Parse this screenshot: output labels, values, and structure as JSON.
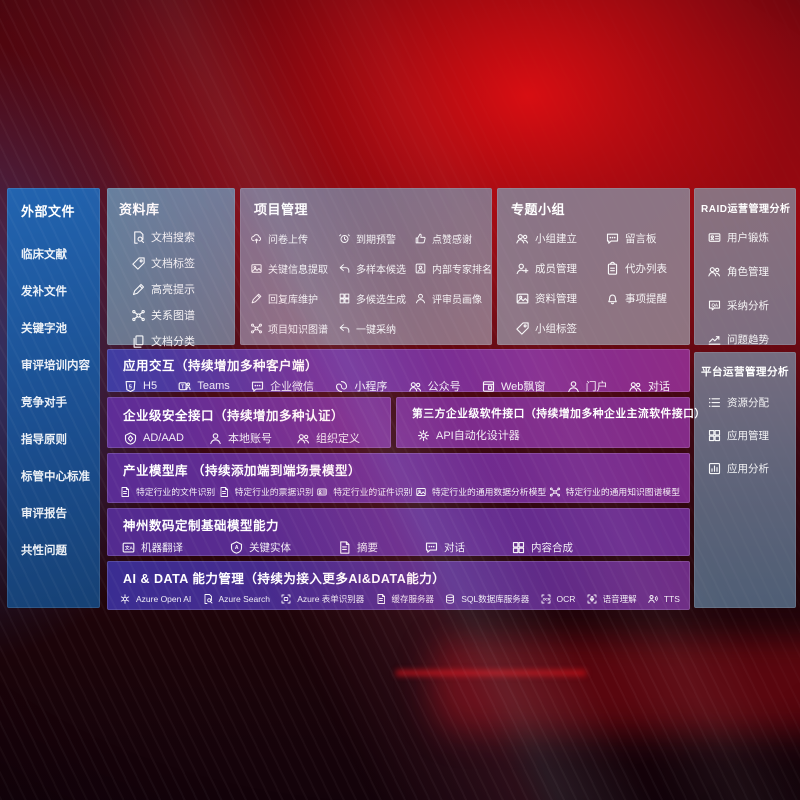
{
  "colors": {
    "screen_red": "#c30c12",
    "sidebar_blue": "#1d5aa0",
    "panel_gray": "#7a7288",
    "module_purple": "#6e2c8e",
    "module_indigo": "#3f3da2"
  },
  "sidebar": {
    "title": "外部文件",
    "items": [
      {
        "label": "临床文献"
      },
      {
        "label": "发补文件"
      },
      {
        "label": "关键字池"
      },
      {
        "label": "审评培训内容"
      },
      {
        "label": "竞争对手"
      },
      {
        "label": "指导原则"
      },
      {
        "label": "标管中心标准"
      },
      {
        "label": "审评报告"
      },
      {
        "label": "共性问题"
      }
    ]
  },
  "library": {
    "title": "资料库",
    "items": [
      {
        "label": "文档搜索",
        "icon": "document-search",
        "glyph": "search-doc"
      },
      {
        "label": "文档标签",
        "icon": "document-tag",
        "glyph": "tag"
      },
      {
        "label": "高亮提示",
        "icon": "highlight-pen",
        "glyph": "pencil"
      },
      {
        "label": "关系图谱",
        "icon": "relation-graph",
        "glyph": "graph"
      },
      {
        "label": "文档分类",
        "icon": "document-classify",
        "glyph": "copy"
      }
    ]
  },
  "project": {
    "title": "项目管理",
    "items": [
      {
        "label": "问卷上传",
        "icon": "cloud-upload",
        "glyph": "cloud"
      },
      {
        "label": "到期预警",
        "icon": "alarm-warning",
        "glyph": "alarm"
      },
      {
        "label": "点赞感谢",
        "icon": "thumbs-up",
        "glyph": "thumb"
      },
      {
        "label": "关键信息提取",
        "icon": "info-extract",
        "glyph": "image"
      },
      {
        "label": "多样本候选",
        "icon": "multi-sample",
        "glyph": "reply"
      },
      {
        "label": "内部专家排名",
        "icon": "expert-rank",
        "glyph": "person-frame"
      },
      {
        "label": "回复库维护",
        "icon": "reply-edit",
        "glyph": "pencil"
      },
      {
        "label": "多候选生成",
        "icon": "multi-generate",
        "glyph": "grid"
      },
      {
        "label": "评审员画像",
        "icon": "reviewer-profile",
        "glyph": "person"
      },
      {
        "label": "项目知识图谱",
        "icon": "knowledge-graph",
        "glyph": "graph"
      },
      {
        "label": "一键采纳",
        "icon": "one-click-adopt",
        "glyph": "reply"
      }
    ]
  },
  "groups": {
    "title": "专题小组",
    "items": [
      {
        "label": "小组建立",
        "icon": "group-create",
        "glyph": "people"
      },
      {
        "label": "留言板",
        "icon": "message-board",
        "glyph": "chat"
      },
      {
        "label": "成员管理",
        "icon": "member-manage",
        "glyph": "person-plus"
      },
      {
        "label": "代办列表",
        "icon": "todo-list",
        "glyph": "clipboard"
      },
      {
        "label": "资料管理",
        "icon": "material-manage",
        "glyph": "image"
      },
      {
        "label": "事项提醒",
        "icon": "reminder-bell",
        "glyph": "bell"
      },
      {
        "label": "小组标签",
        "icon": "group-tag",
        "glyph": "tag"
      }
    ]
  },
  "raid": {
    "title": "RAID运营管理分析",
    "items": [
      {
        "label": "用户锻炼",
        "icon": "user-badge",
        "glyph": "card"
      },
      {
        "label": "角色管理",
        "icon": "role-manage",
        "glyph": "people"
      },
      {
        "label": "采纳分析",
        "icon": "adopt-analysis",
        "glyph": "qa"
      },
      {
        "label": "问题趋势",
        "icon": "issue-trend",
        "glyph": "trend"
      }
    ]
  },
  "platform": {
    "title": "平台运营管理分析",
    "items": [
      {
        "label": "资源分配",
        "icon": "resource-allocate",
        "glyph": "list"
      },
      {
        "label": "应用管理",
        "icon": "app-manage",
        "glyph": "grid"
      },
      {
        "label": "应用分析",
        "icon": "app-analysis",
        "glyph": "chart-box"
      }
    ]
  },
  "interaction": {
    "title": "应用交互（持续增加多种客户端）",
    "items": [
      {
        "label": "H5",
        "icon": "h5-logo",
        "glyph": "h5"
      },
      {
        "label": "Teams",
        "icon": "teams-logo",
        "glyph": "teams"
      },
      {
        "label": "企业微信",
        "icon": "wecom-chat",
        "glyph": "chat"
      },
      {
        "label": "小程序",
        "icon": "miniprogram",
        "glyph": "loop"
      },
      {
        "label": "公众号",
        "icon": "official-account",
        "glyph": "people"
      },
      {
        "label": "Web飘窗",
        "icon": "web-popup",
        "glyph": "window"
      },
      {
        "label": "门户",
        "icon": "portal-user",
        "glyph": "person"
      },
      {
        "label": "对话",
        "icon": "dialog-users",
        "glyph": "people"
      }
    ]
  },
  "security": {
    "title": "企业级安全接口（持续增加多种认证）",
    "items": [
      {
        "label": "AD/AAD",
        "icon": "ad-shield",
        "glyph": "shield"
      },
      {
        "label": "本地账号",
        "icon": "local-account",
        "glyph": "person"
      },
      {
        "label": "组织定义",
        "icon": "org-define",
        "glyph": "people"
      }
    ]
  },
  "thirdparty": {
    "title": "第三方企业级软件接口（持续增加多种企业主流软件接口）",
    "items": [
      {
        "label": "API自动化设计器",
        "icon": "api-designer",
        "glyph": "gear"
      }
    ]
  },
  "industry": {
    "title": "产业模型库 （持续添加端到端场景模型）",
    "items": [
      {
        "label": "特定行业的文件识别",
        "icon": "file-recognize",
        "glyph": "doc"
      },
      {
        "label": "特定行业的票据识别",
        "icon": "invoice-recognize",
        "glyph": "doc"
      },
      {
        "label": "特定行业的证件识别",
        "icon": "cert-recognize",
        "glyph": "card"
      },
      {
        "label": "特定行业的通用数据分析模型",
        "icon": "data-analysis-model",
        "glyph": "image"
      },
      {
        "label": "特定行业的通用知识图谱模型",
        "icon": "kg-model",
        "glyph": "graph"
      }
    ]
  },
  "basemodel": {
    "title": "神州数码定制基础模型能力",
    "items": [
      {
        "label": "机器翻译",
        "icon": "machine-translate",
        "glyph": "translate"
      },
      {
        "label": "关键实体",
        "icon": "key-entity",
        "glyph": "entity"
      },
      {
        "label": "摘要",
        "icon": "summary-doc",
        "glyph": "doc"
      },
      {
        "label": "对话",
        "icon": "dialog-chat",
        "glyph": "chat"
      },
      {
        "label": "内容合成",
        "icon": "content-compose",
        "glyph": "grid"
      }
    ]
  },
  "aidata": {
    "title": "AI & DATA 能力管理（持续为接入更多AI&DATA能力）",
    "items": [
      {
        "label": "Azure Open AI",
        "icon": "openai-logo",
        "glyph": "openai"
      },
      {
        "label": "Azure Search",
        "icon": "azure-search",
        "glyph": "search-doc"
      },
      {
        "label": "Azure 表单识别器",
        "icon": "form-recognizer",
        "glyph": "frame"
      },
      {
        "label": "缓存服务器",
        "icon": "cache-server",
        "glyph": "doc"
      },
      {
        "label": "SQL数据库服务器",
        "icon": "sql-server",
        "glyph": "db"
      },
      {
        "label": "OCR",
        "icon": "ocr-scan",
        "glyph": "ocr"
      },
      {
        "label": "语音理解",
        "icon": "speech-understand",
        "glyph": "mic"
      },
      {
        "label": "TTS",
        "icon": "tts-voice",
        "glyph": "tts"
      }
    ]
  }
}
